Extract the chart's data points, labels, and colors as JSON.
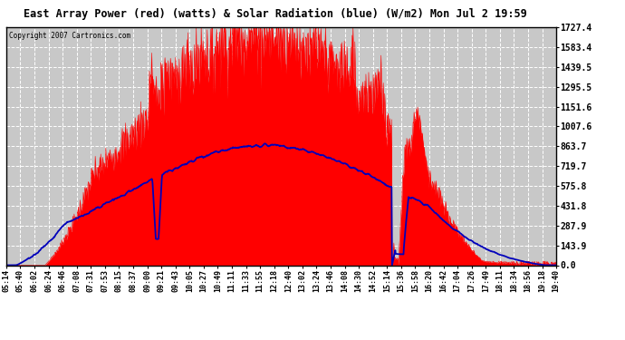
{
  "title": "East Array Power (red) (watts) & Solar Radiation (blue) (W/m2) Mon Jul 2 19:59",
  "copyright": "Copyright 2007 Cartronics.com",
  "yticks": [
    0.0,
    143.9,
    287.9,
    431.8,
    575.8,
    719.7,
    863.7,
    1007.6,
    1151.6,
    1295.5,
    1439.5,
    1583.4,
    1727.4
  ],
  "ymax": 1727.4,
  "ymin": 0.0,
  "bg_color": "#ffffff",
  "plot_bg_color": "#c8c8c8",
  "grid_color": "#ffffff",
  "red_color": "#ff0000",
  "blue_color": "#0000bb",
  "xtick_labels": [
    "05:14",
    "05:40",
    "06:02",
    "06:24",
    "06:46",
    "07:08",
    "07:31",
    "07:53",
    "08:15",
    "08:37",
    "09:00",
    "09:21",
    "09:43",
    "10:05",
    "10:27",
    "10:49",
    "11:11",
    "11:33",
    "11:55",
    "12:18",
    "12:40",
    "13:02",
    "13:24",
    "13:46",
    "14:08",
    "14:30",
    "14:52",
    "15:14",
    "15:36",
    "15:58",
    "16:20",
    "16:42",
    "17:04",
    "17:26",
    "17:49",
    "18:11",
    "18:34",
    "18:56",
    "19:18",
    "19:40"
  ]
}
